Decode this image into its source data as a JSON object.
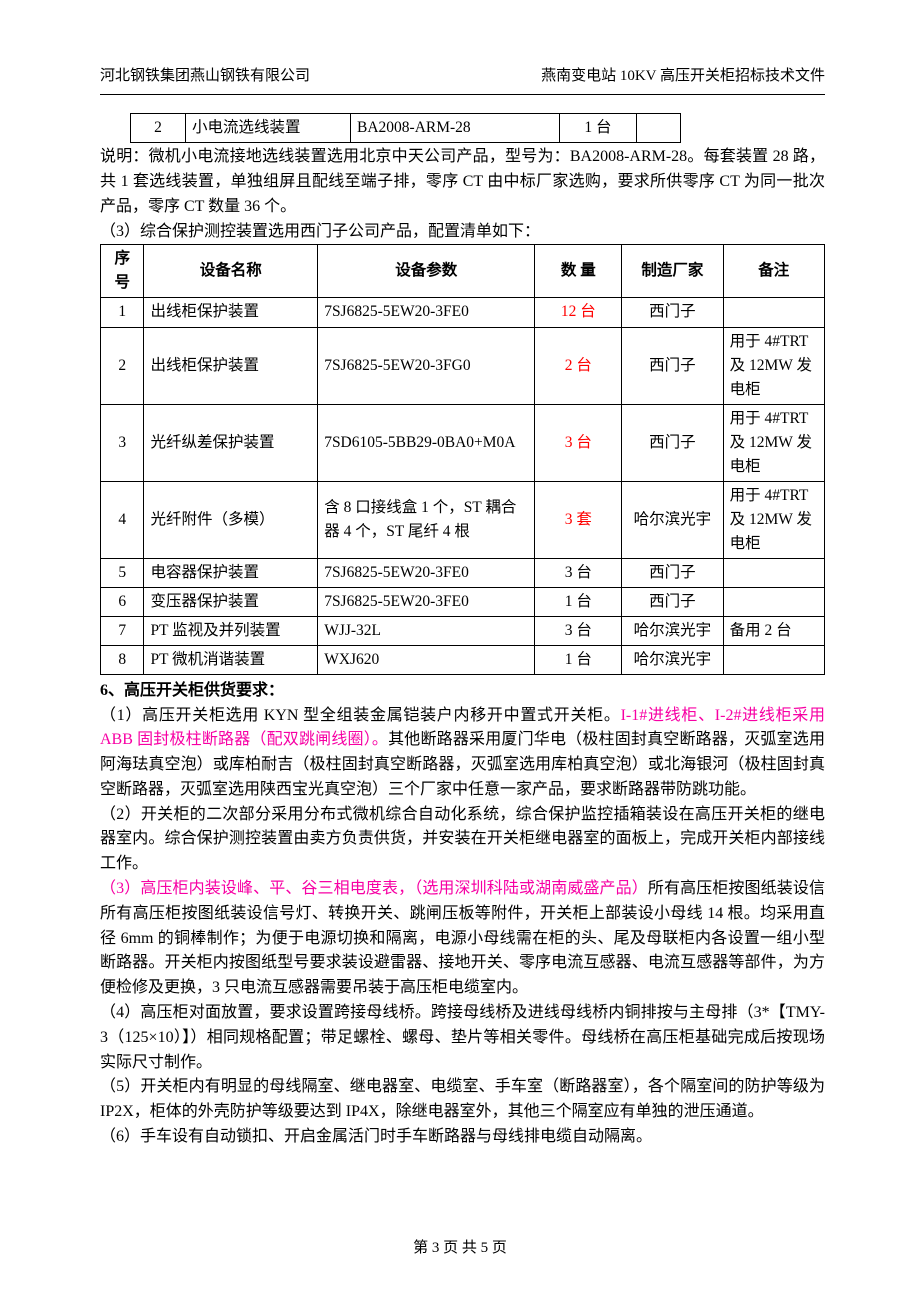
{
  "header": {
    "left": "河北钢铁集团燕山钢铁有限公司",
    "right": "燕南变电站 10KV 高压开关柜招标技术文件"
  },
  "table1": {
    "row": {
      "no": "2",
      "name": "小电流选线装置",
      "model": "BA2008-ARM-28",
      "qty": "1 台",
      "note": ""
    }
  },
  "explain1": "说明：微机小电流接地选线装置选用北京中天公司产品，型号为：BA2008-ARM-28。每套装置 28 路，共 1 套选线装置，单独组屏且配线至端子排，零序 CT 由中标厂家选购，要求所供零序 CT 为同一批次产品，零序 CT 数量 36 个。",
  "point3": "（3）综合保护测控装置选用西门子公司产品，配置清单如下：",
  "table2": {
    "headers": {
      "no": "序号",
      "name": "设备名称",
      "param": "设备参数",
      "qty": "数   量",
      "maker": "制造厂家",
      "note": "备注"
    },
    "rows": [
      {
        "no": "1",
        "name": "出线柜保护装置",
        "param": "7SJ6825-5EW20-3FE0",
        "qty": "12 台",
        "qty_red": true,
        "maker": "西门子",
        "note": ""
      },
      {
        "no": "2",
        "name": "出线柜保护装置",
        "param": "7SJ6825-5EW20-3FG0",
        "qty": "2 台",
        "qty_red": true,
        "maker": "西门子",
        "note": "用于 4#TRT及 12MW 发电柜"
      },
      {
        "no": "3",
        "name": "光纤纵差保护装置",
        "param": "7SD6105-5BB29-0BA0+M0A",
        "qty": "3 台",
        "qty_red": true,
        "maker": "西门子",
        "note": "用于 4#TRT及 12MW 发电柜"
      },
      {
        "no": "4",
        "name": "光纤附件（多模）",
        "param": "含 8 口接线盒 1 个，ST 耦合器 4 个，ST 尾纤 4 根",
        "qty": "3 套",
        "qty_red": true,
        "maker": "哈尔滨光宇",
        "note": "用于 4#TRT及 12MW 发电柜"
      },
      {
        "no": "5",
        "name": "电容器保护装置",
        "param": "7SJ6825-5EW20-3FE0",
        "qty": "3 台",
        "qty_red": false,
        "maker": "西门子",
        "note": ""
      },
      {
        "no": "6",
        "name": "变压器保护装置",
        "param": "7SJ6825-5EW20-3FE0",
        "qty": "1 台",
        "qty_red": false,
        "maker": "西门子",
        "note": ""
      },
      {
        "no": "7",
        "name": "PT 监视及并列装置",
        "param": "WJJ-32L",
        "qty": "3 台",
        "qty_red": false,
        "maker": "哈尔滨光宇",
        "note": "备用 2 台"
      },
      {
        "no": "8",
        "name": "PT 微机消谐装置",
        "param": "WXJ620",
        "qty": "1 台",
        "qty_red": false,
        "maker": "哈尔滨光宇",
        "note": ""
      }
    ]
  },
  "section6_title": "6、高压开关柜供货要求：",
  "p6_1_a": "（1）高压开关柜选用 KYN 型全组装金属铠装户内移开中置式开关柜。",
  "p6_1_pink": "I-1#进线柜、I-2#进线柜采用 ABB 固封极柱断路器（配双跳闸线圈）。",
  "p6_1_b": "其他断路器采用厦门华电（极柱固封真空断路器，灭弧室选用阿海珐真空泡）或库柏耐吉（极柱固封真空断路器，灭弧室选用库柏真空泡）或北海银河（极柱固封真空断路器，灭弧室选用陕西宝光真空泡）三个厂家中任意一家产品，要求断路器带防跳功能。",
  "p6_2": "（2）开关柜的二次部分采用分布式微机综合自动化系统，综合保护监控插箱装设在高压开关柜的继电器室内。综合保护测控装置由卖方负责供货，并安装在开关柜继电器室的面板上，完成开关柜内部接线工作。",
  "p6_3_pink": "（3）高压柜内装设峰、平、谷三相电度表，（选用深圳科陆或湖南威盛产品）",
  "p6_3_b": "所有高压柜按图纸装设信所有高压柜按图纸装设信号灯、转换开关、跳闸压板等附件，开关柜上部装设小母线 14 根。均采用直径 6mm 的铜棒制作；为便于电源切换和隔离，电源小母线需在柜的头、尾及母联柜内各设置一组小型断路器。开关柜内按图纸型号要求装设避雷器、接地开关、零序电流互感器、电流互感器等部件，为方便检修及更换，3 只电流互感器需要吊装于高压柜电缆室内。",
  "p6_4": "（4）高压柜对面放置，要求设置跨接母线桥。跨接母线桥及进线母线桥内铜排按与主母排（3*【TMY-3（125×10）】）相同规格配置；带足螺栓、螺母、垫片等相关零件。母线桥在高压柜基础完成后按现场实际尺寸制作。",
  "p6_5": "（5）开关柜内有明显的母线隔室、继电器室、电缆室、手车室（断路器室），各个隔室间的防护等级为 IP2X，柜体的外壳防护等级要达到 IP4X，除继电器室外，其他三个隔室应有单独的泄压通道。",
  "p6_6": "（6）手车设有自动锁扣、开启金属活门时手车断路器与母线排电缆自动隔离。",
  "footer": "第 3 页 共 5 页"
}
